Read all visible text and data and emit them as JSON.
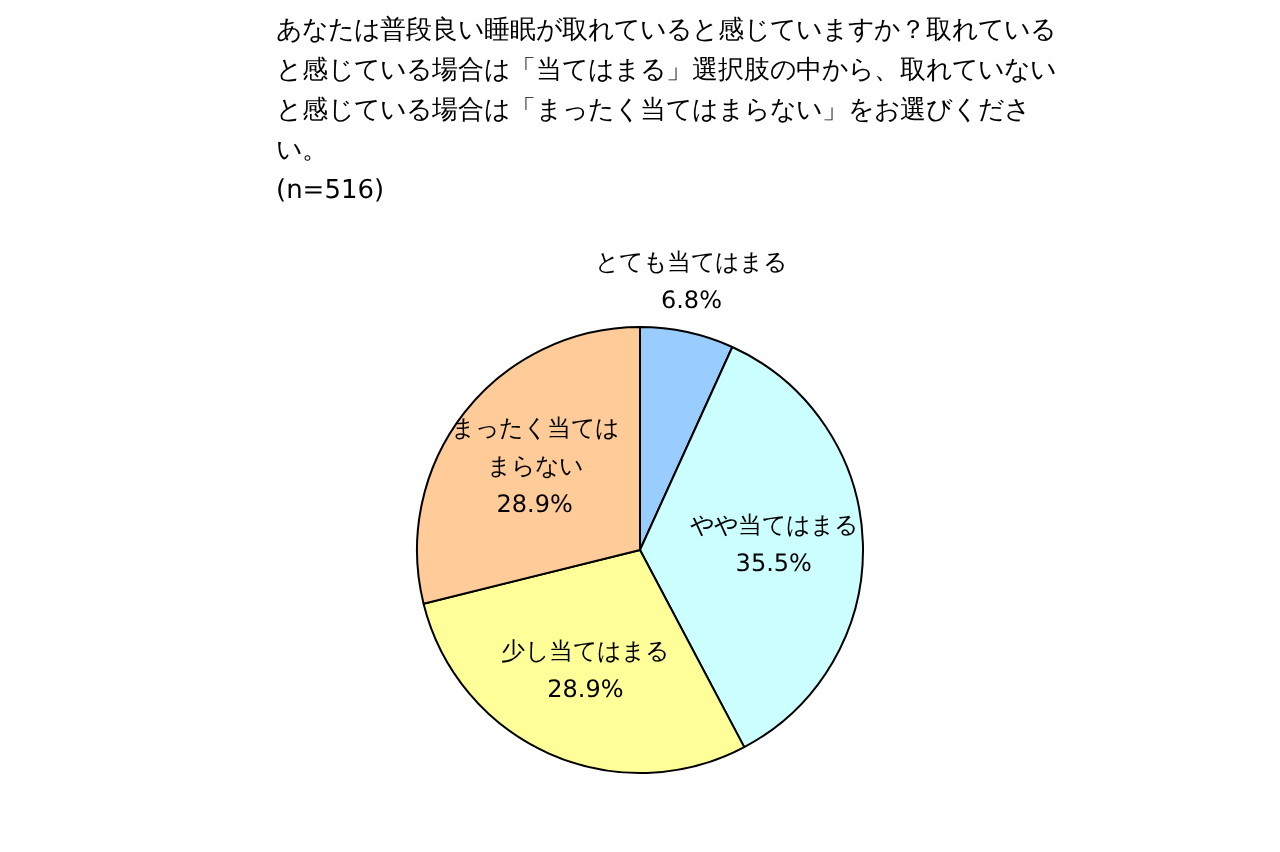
{
  "chart_data": {
    "type": "pie",
    "title": "あなたは普段良い睡眠が取れていると感じていますか？取れていると感じている場合は「当てはまる」選択肢の中から、取れていないと感じている場合は「まったく当てはまらない」をお選びください。",
    "subtitle": "(n=516)",
    "categories": [
      "とても当てはまる",
      "やや当てはまる",
      "少し当てはまる",
      "まったく当てはまらない"
    ],
    "values": [
      6.8,
      35.5,
      28.9,
      28.9
    ],
    "colors": [
      "#99ccff",
      "#ccffff",
      "#ffff99",
      "#ffcc99"
    ],
    "value_labels": [
      "6.8%",
      "35.5%",
      "28.9%",
      "28.9%"
    ],
    "legend": false
  }
}
